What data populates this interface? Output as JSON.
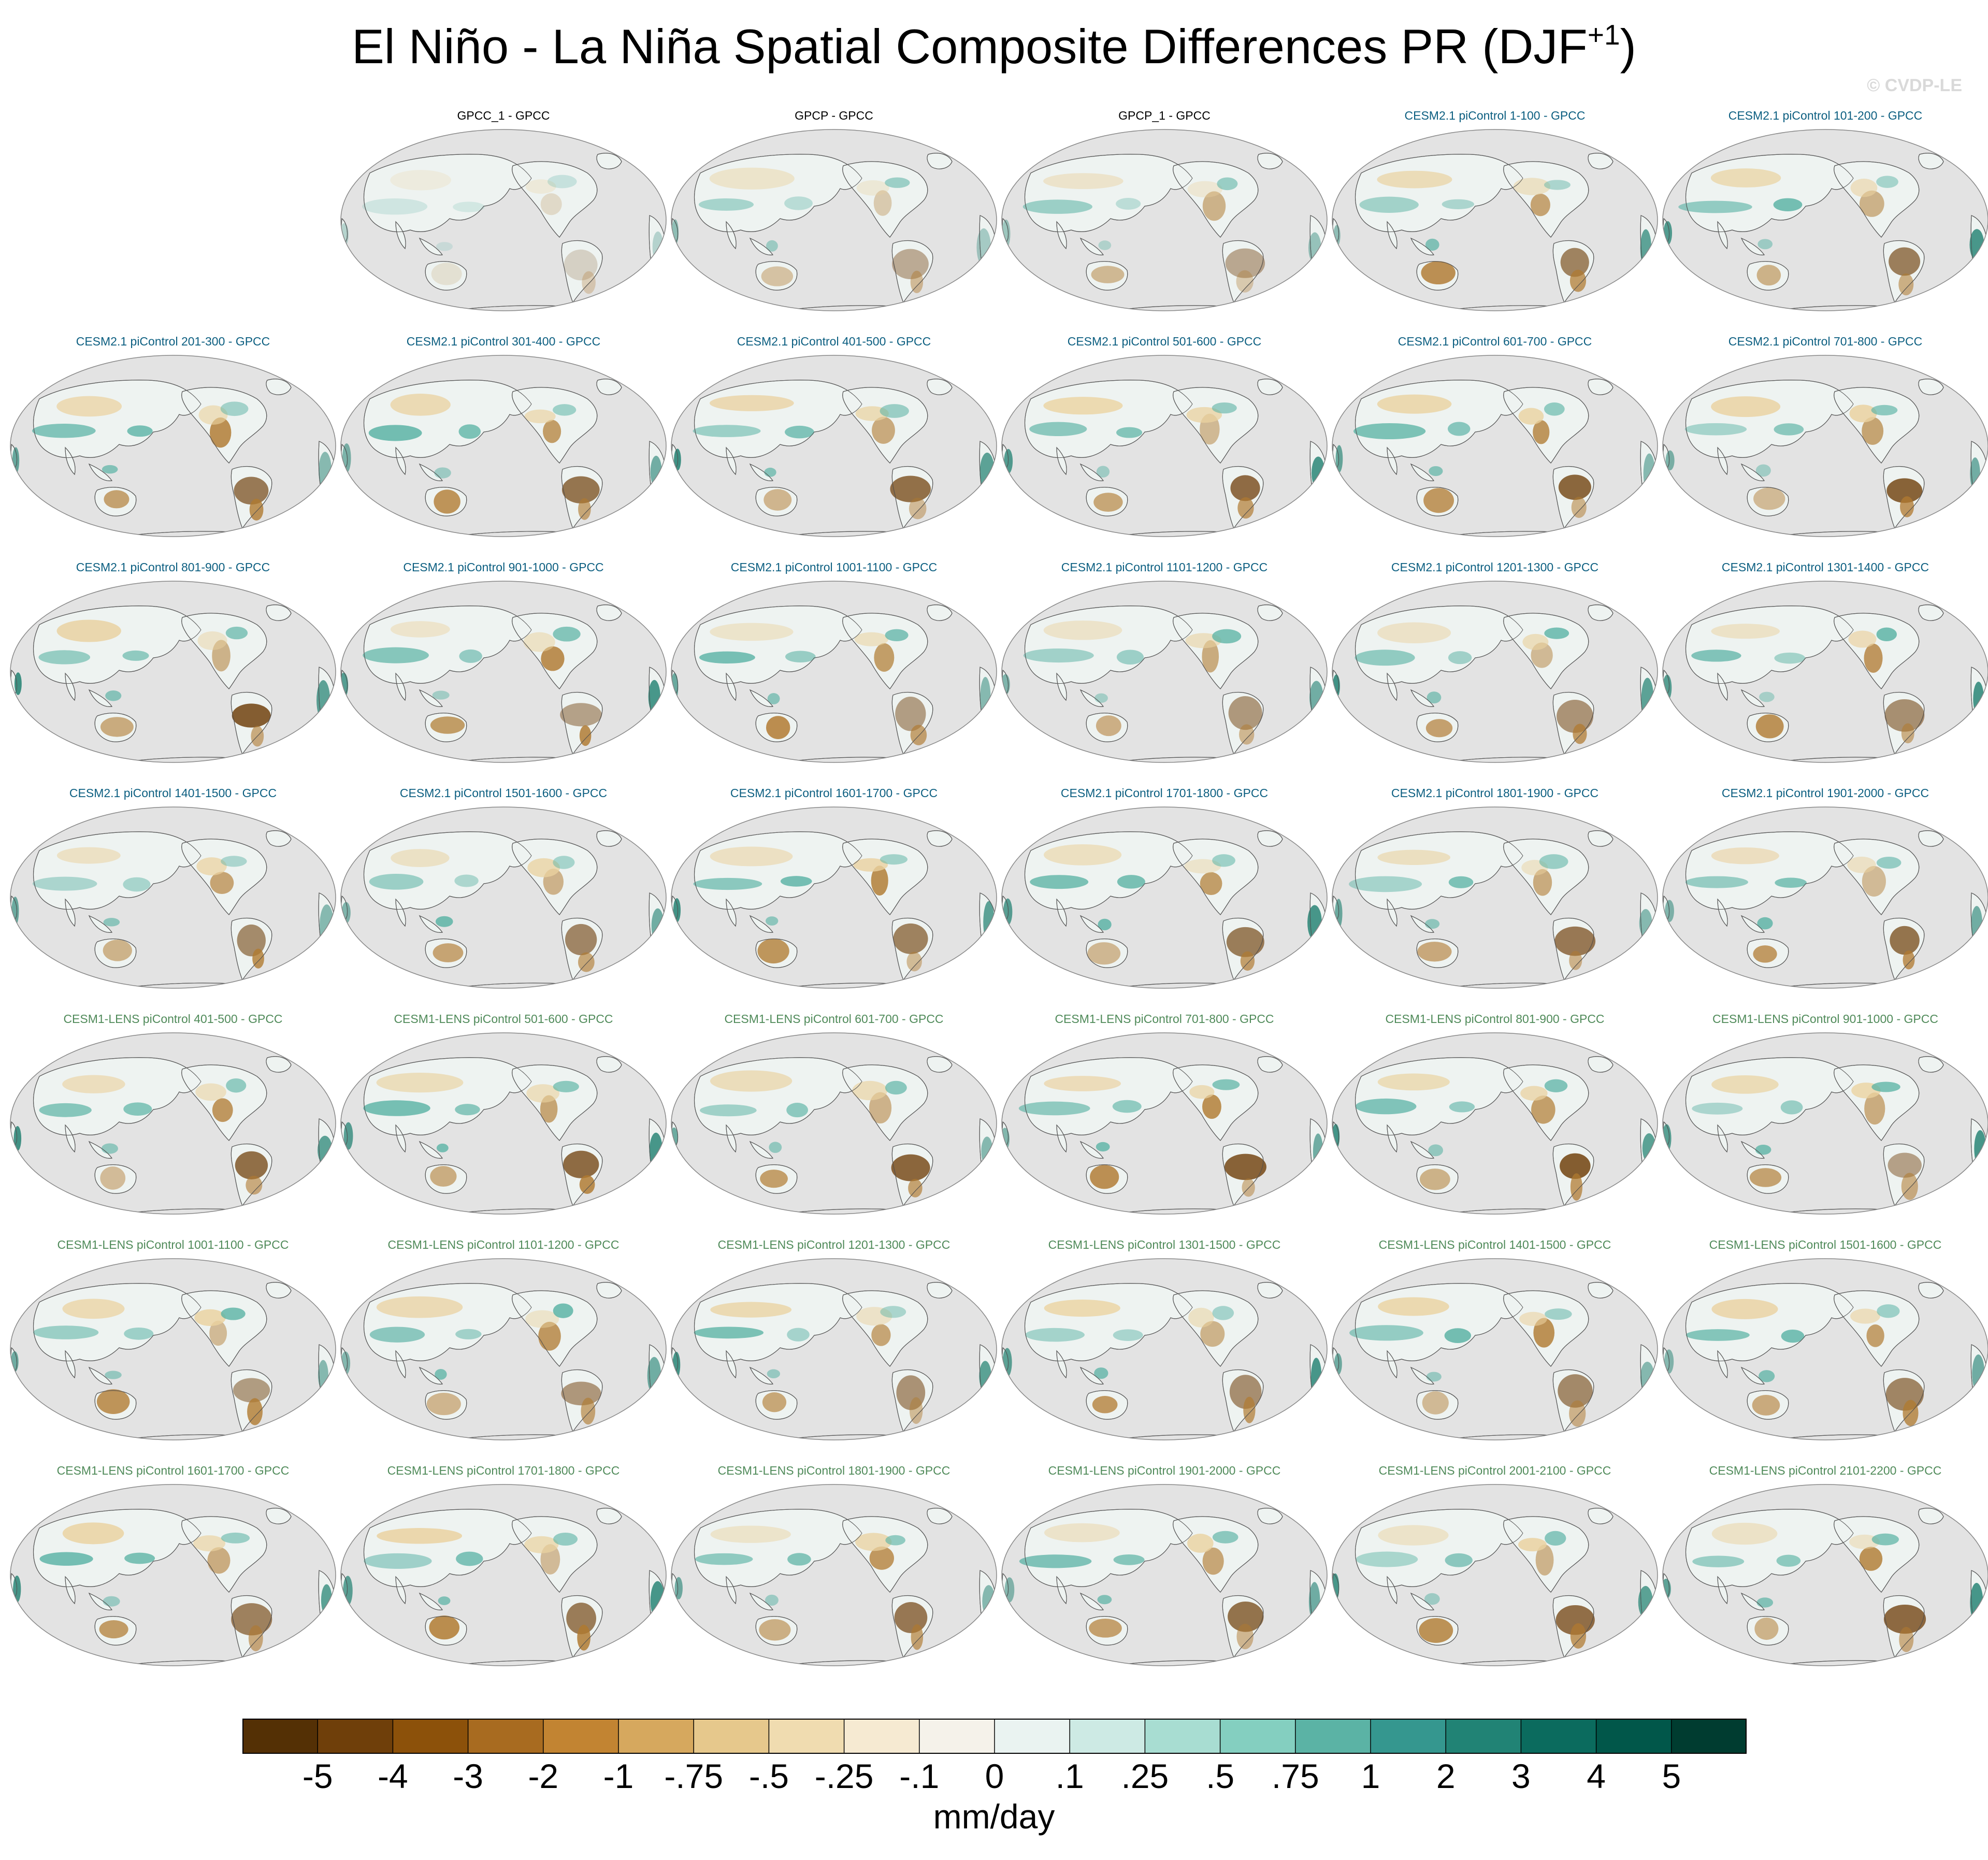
{
  "title": {
    "main": "El Niño - La Niña Spatial Composite Differences PR (DJF",
    "sup": "+1",
    "close": ")"
  },
  "credit": "© CVDP-LE",
  "panels": [
    {
      "label": "GPCC_1 - GPCC",
      "group": "obs"
    },
    {
      "label": "GPCP - GPCC",
      "group": "obs"
    },
    {
      "label": "GPCP_1 - GPCC",
      "group": "obs"
    },
    {
      "label": "CESM2.1 piControl 1-100 - GPCC",
      "group": "cesm2"
    },
    {
      "label": "CESM2.1 piControl 101-200 - GPCC",
      "group": "cesm2"
    },
    {
      "label": "CESM2.1 piControl 201-300 - GPCC",
      "group": "cesm2"
    },
    {
      "label": "CESM2.1 piControl 301-400 - GPCC",
      "group": "cesm2"
    },
    {
      "label": "CESM2.1 piControl 401-500 - GPCC",
      "group": "cesm2"
    },
    {
      "label": "CESM2.1 piControl 501-600 - GPCC",
      "group": "cesm2"
    },
    {
      "label": "CESM2.1 piControl 601-700 - GPCC",
      "group": "cesm2"
    },
    {
      "label": "CESM2.1 piControl 701-800 - GPCC",
      "group": "cesm2"
    },
    {
      "label": "CESM2.1 piControl 801-900 - GPCC",
      "group": "cesm2"
    },
    {
      "label": "CESM2.1 piControl 901-1000 - GPCC",
      "group": "cesm2"
    },
    {
      "label": "CESM2.1 piControl 1001-1100 - GPCC",
      "group": "cesm2"
    },
    {
      "label": "CESM2.1 piControl 1101-1200 - GPCC",
      "group": "cesm2"
    },
    {
      "label": "CESM2.1 piControl 1201-1300 - GPCC",
      "group": "cesm2"
    },
    {
      "label": "CESM2.1 piControl 1301-1400 - GPCC",
      "group": "cesm2"
    },
    {
      "label": "CESM2.1 piControl 1401-1500 - GPCC",
      "group": "cesm2"
    },
    {
      "label": "CESM2.1 piControl 1501-1600 - GPCC",
      "group": "cesm2"
    },
    {
      "label": "CESM2.1 piControl 1601-1700 - GPCC",
      "group": "cesm2"
    },
    {
      "label": "CESM2.1 piControl 1701-1800 - GPCC",
      "group": "cesm2"
    },
    {
      "label": "CESM2.1 piControl 1801-1900 - GPCC",
      "group": "cesm2"
    },
    {
      "label": "CESM2.1 piControl 1901-2000 - GPCC",
      "group": "cesm2"
    },
    {
      "label": "CESM1-LENS piControl 401-500 - GPCC",
      "group": "lens"
    },
    {
      "label": "CESM1-LENS piControl 501-600 - GPCC",
      "group": "lens"
    },
    {
      "label": "CESM1-LENS piControl 601-700 - GPCC",
      "group": "lens"
    },
    {
      "label": "CESM1-LENS piControl 701-800 - GPCC",
      "group": "lens"
    },
    {
      "label": "CESM1-LENS piControl 801-900 - GPCC",
      "group": "lens"
    },
    {
      "label": "CESM1-LENS piControl 901-1000 - GPCC",
      "group": "lens"
    },
    {
      "label": "CESM1-LENS piControl 1001-1100 - GPCC",
      "group": "lens"
    },
    {
      "label": "CESM1-LENS piControl 1101-1200 - GPCC",
      "group": "lens"
    },
    {
      "label": "CESM1-LENS piControl 1201-1300 - GPCC",
      "group": "lens"
    },
    {
      "label": "CESM1-LENS piControl 1301-1500 - GPCC",
      "group": "lens"
    },
    {
      "label": "CESM1-LENS piControl 1401-1500 - GPCC",
      "group": "lens"
    },
    {
      "label": "CESM1-LENS piControl 1501-1600 - GPCC",
      "group": "lens"
    },
    {
      "label": "CESM1-LENS piControl 1601-1700 - GPCC",
      "group": "lens"
    },
    {
      "label": "CESM1-LENS piControl 1701-1800 - GPCC",
      "group": "lens"
    },
    {
      "label": "CESM1-LENS piControl 1801-1900 - GPCC",
      "group": "lens"
    },
    {
      "label": "CESM1-LENS piControl 1901-2000 - GPCC",
      "group": "lens"
    },
    {
      "label": "CESM1-LENS piControl 2001-2100 - GPCC",
      "group": "lens"
    },
    {
      "label": "CESM1-LENS piControl 2101-2200 - GPCC",
      "group": "lens"
    }
  ],
  "colorbar": {
    "colors": [
      "#543005",
      "#6f3f0a",
      "#8c510a",
      "#a86b20",
      "#c28432",
      "#d6a85e",
      "#e6c88c",
      "#f0dcb0",
      "#f6ead2",
      "#f5f2ea",
      "#eaf3f1",
      "#cdeae4",
      "#a8ddd2",
      "#84cfc0",
      "#5bb3a5",
      "#35978f",
      "#218375",
      "#0b6b5e",
      "#01574a",
      "#003c30"
    ],
    "ticks": [
      "-5",
      "-4",
      "-3",
      "-2",
      "-1",
      "-.75",
      "-.5",
      "-.25",
      "-.1",
      "0",
      ".1",
      ".25",
      ".5",
      ".75",
      "1",
      "2",
      "3",
      "4",
      "5"
    ],
    "units": "mm/day"
  },
  "map_colors": {
    "ocean": "#e3e3e3",
    "coast": "#555555",
    "land_base": "#eef3f1",
    "dry": "#b07a30",
    "dry_strong": "#6f3f0a",
    "wet": "#5bb3a5",
    "wet_strong": "#1f8070",
    "tan": "#ead2a0"
  }
}
